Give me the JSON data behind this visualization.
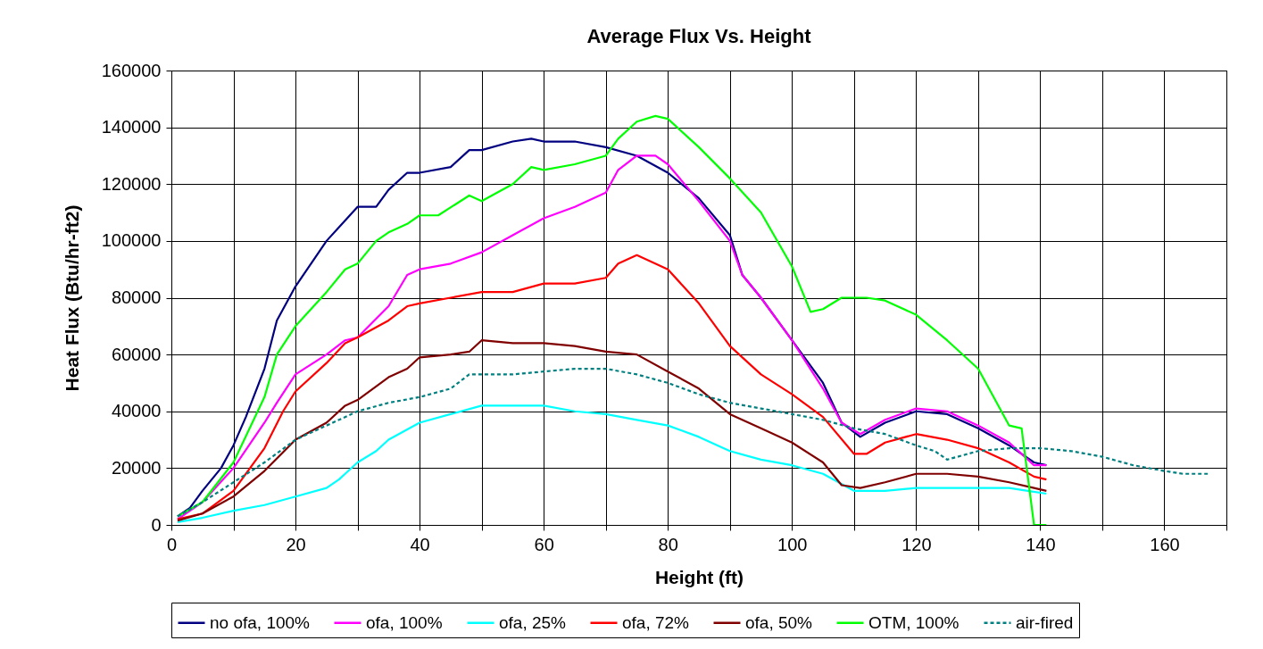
{
  "chart_data": {
    "type": "line",
    "title": "Average Flux Vs. Height",
    "xlabel": "Height (ft)",
    "ylabel": "Heat Flux (Btu/hr-ft2)",
    "xlim": [
      0,
      170
    ],
    "ylim": [
      0,
      160000
    ],
    "xticks": [
      0,
      {
        "value": 10,
        "label": null
      },
      20,
      {
        "value": 30,
        "label": null
      },
      40,
      {
        "value": 50,
        "label": null
      },
      60,
      {
        "value": 70,
        "label": null
      },
      80,
      {
        "value": 90,
        "label": null
      },
      100,
      {
        "value": 110,
        "label": null
      },
      120,
      {
        "value": 130,
        "label": null
      },
      140,
      {
        "value": 150,
        "label": null
      },
      160,
      {
        "value": 170,
        "label": null
      }
    ],
    "yticks": [
      0,
      20000,
      40000,
      60000,
      80000,
      100000,
      120000,
      140000,
      160000
    ],
    "grid": true,
    "legend": "bottom",
    "marker": "none",
    "series": [
      {
        "name": "no ofa, 100%",
        "color": "#000080",
        "line_style": "solid",
        "x": [
          1,
          3,
          5,
          8,
          10,
          12,
          15,
          17,
          20,
          25,
          30,
          33,
          35,
          38,
          40,
          45,
          48,
          50,
          55,
          58,
          60,
          65,
          70,
          75,
          80,
          85,
          90,
          92,
          95,
          100,
          105,
          108,
          111,
          115,
          120,
          125,
          130,
          135,
          139,
          141
        ],
        "values": [
          3000,
          6000,
          12000,
          20000,
          28000,
          38000,
          55000,
          72000,
          84000,
          100000,
          112000,
          112000,
          118000,
          124000,
          124000,
          126000,
          132000,
          132000,
          135000,
          136000,
          135000,
          135000,
          133000,
          130000,
          124000,
          115000,
          102000,
          88000,
          80000,
          65000,
          50000,
          36000,
          31000,
          36000,
          40000,
          39000,
          34000,
          28000,
          22000,
          21000
        ]
      },
      {
        "name": "ofa, 100%",
        "color": "#ff00ff",
        "line_style": "solid",
        "x": [
          1,
          5,
          10,
          15,
          17,
          20,
          25,
          28,
          30,
          35,
          38,
          40,
          45,
          50,
          55,
          60,
          65,
          70,
          72,
          75,
          78,
          80,
          85,
          90,
          92,
          95,
          100,
          105,
          108,
          111,
          115,
          120,
          125,
          130,
          135,
          139,
          141
        ],
        "values": [
          2000,
          8000,
          20000,
          36000,
          43000,
          53000,
          60000,
          65000,
          66000,
          77000,
          88000,
          90000,
          92000,
          96000,
          102000,
          108000,
          112000,
          117000,
          125000,
          130000,
          130000,
          127000,
          114000,
          100000,
          88000,
          80000,
          65000,
          48000,
          36000,
          32000,
          37000,
          41000,
          40000,
          35000,
          29000,
          21000,
          21000
        ]
      },
      {
        "name": "ofa, 25%",
        "color": "#00ffff",
        "line_style": "solid",
        "x": [
          1,
          5,
          10,
          15,
          20,
          25,
          27,
          28,
          30,
          33,
          35,
          40,
          45,
          50,
          55,
          60,
          65,
          70,
          75,
          80,
          85,
          88,
          90,
          95,
          100,
          105,
          110,
          115,
          120,
          130,
          135,
          138,
          141
        ],
        "values": [
          1000,
          2500,
          5000,
          7000,
          10000,
          13000,
          16000,
          18000,
          22000,
          26000,
          30000,
          36000,
          39000,
          42000,
          42000,
          42000,
          40000,
          39000,
          37000,
          35000,
          31000,
          28000,
          26000,
          23000,
          21000,
          18000,
          12000,
          12000,
          13000,
          13000,
          13000,
          12000,
          11000
        ]
      },
      {
        "name": "ofa, 72%",
        "color": "#ff0000",
        "line_style": "solid",
        "x": [
          1,
          5,
          10,
          15,
          18,
          20,
          25,
          28,
          30,
          35,
          38,
          40,
          45,
          50,
          55,
          60,
          65,
          70,
          72,
          75,
          80,
          85,
          90,
          95,
          100,
          105,
          110,
          112,
          115,
          120,
          125,
          130,
          135,
          139,
          141
        ],
        "values": [
          2000,
          4000,
          12000,
          27000,
          40000,
          47000,
          57000,
          64000,
          66000,
          72000,
          77000,
          78000,
          80000,
          82000,
          82000,
          85000,
          85000,
          87000,
          92000,
          95000,
          90000,
          78000,
          63000,
          53000,
          46000,
          38000,
          25000,
          25000,
          29000,
          32000,
          30000,
          27000,
          22000,
          17000,
          16000
        ]
      },
      {
        "name": "ofa, 50%",
        "color": "#800000",
        "line_style": "solid",
        "x": [
          1,
          5,
          10,
          15,
          20,
          25,
          28,
          30,
          35,
          38,
          40,
          45,
          48,
          50,
          55,
          60,
          65,
          70,
          75,
          80,
          85,
          90,
          95,
          100,
          105,
          108,
          111,
          115,
          120,
          125,
          130,
          135,
          139,
          141
        ],
        "values": [
          1500,
          4000,
          10000,
          19000,
          30000,
          36000,
          42000,
          44000,
          52000,
          55000,
          59000,
          60000,
          61000,
          65000,
          64000,
          64000,
          63000,
          61000,
          60000,
          54000,
          48000,
          39000,
          34000,
          29000,
          22000,
          14000,
          13000,
          15000,
          18000,
          18000,
          17000,
          15000,
          13000,
          12000
        ]
      },
      {
        "name": "OTM, 100%",
        "color": "#00ff00",
        "line_style": "solid",
        "x": [
          1,
          5,
          10,
          15,
          17,
          20,
          25,
          28,
          30,
          33,
          35,
          38,
          40,
          43,
          48,
          50,
          55,
          58,
          60,
          65,
          70,
          72,
          75,
          78,
          80,
          85,
          90,
          95,
          100,
          103,
          105,
          108,
          112,
          115,
          120,
          125,
          130,
          132,
          135,
          137,
          139,
          141
        ],
        "values": [
          3000,
          8000,
          22000,
          45000,
          60000,
          70000,
          82000,
          90000,
          92000,
          100000,
          103000,
          106000,
          109000,
          109000,
          116000,
          114000,
          120000,
          126000,
          125000,
          127000,
          130000,
          136000,
          142000,
          144000,
          143000,
          133000,
          122000,
          110000,
          91000,
          75000,
          76000,
          80000,
          80000,
          79000,
          74000,
          65000,
          55000,
          47000,
          35000,
          34000,
          0,
          0
        ]
      },
      {
        "name": "air-fired",
        "color": "#008080",
        "line_style": "dashed",
        "x": [
          1,
          5,
          10,
          15,
          20,
          25,
          30,
          35,
          40,
          45,
          48,
          50,
          55,
          60,
          65,
          70,
          75,
          80,
          85,
          90,
          95,
          100,
          105,
          110,
          115,
          120,
          123,
          125,
          130,
          135,
          140,
          145,
          150,
          155,
          160,
          163,
          167
        ],
        "values": [
          3000,
          8000,
          15000,
          22000,
          30000,
          35000,
          40000,
          43000,
          45000,
          48000,
          53000,
          53000,
          53000,
          54000,
          55000,
          55000,
          53000,
          50000,
          46000,
          43000,
          41000,
          39000,
          37000,
          34000,
          32000,
          28000,
          26000,
          23000,
          26000,
          27000,
          27000,
          26000,
          24000,
          21000,
          19000,
          18000,
          18000
        ]
      }
    ]
  }
}
